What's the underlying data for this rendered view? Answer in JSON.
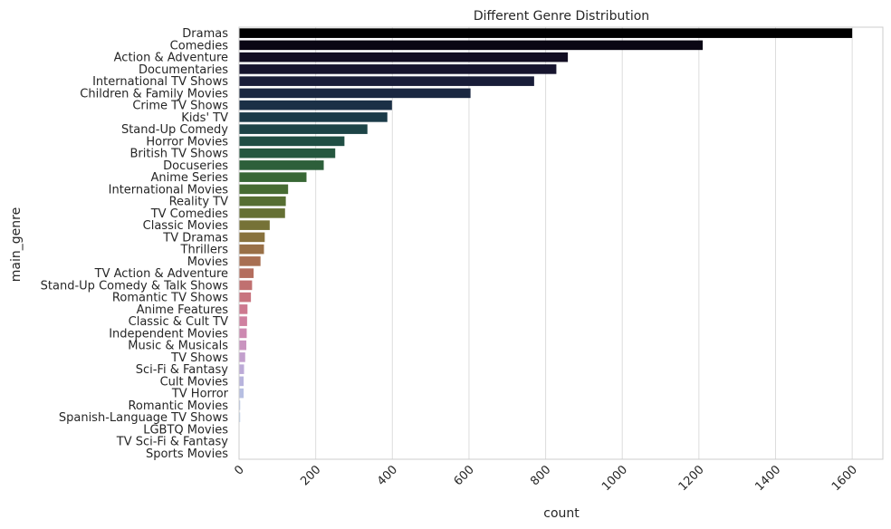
{
  "chart_data": {
    "type": "bar",
    "orientation": "horizontal",
    "title": "Different Genre Distribution",
    "xlabel": "count",
    "ylabel": "main_genre",
    "xlim": [
      0,
      1680
    ],
    "xticks": [
      0,
      200,
      400,
      600,
      800,
      1000,
      1200,
      1400,
      1600
    ],
    "grid": "vertical",
    "categories": [
      "Dramas",
      "Comedies",
      "Action & Adventure",
      "Documentaries",
      "International TV Shows",
      "Children & Family Movies",
      "Crime TV Shows",
      "Kids' TV",
      "Stand-Up Comedy",
      "Horror Movies",
      "British TV Shows",
      "Docuseries",
      "Anime Series",
      "International Movies",
      "Reality TV",
      "TV Comedies",
      "Classic Movies",
      "TV Dramas",
      "Thrillers",
      "Movies",
      "TV Action & Adventure",
      "Stand-Up Comedy & Talk Shows",
      "Romantic TV Shows",
      "Anime Features",
      "Classic & Cult TV",
      "Independent Movies",
      "Music & Musicals",
      "TV Shows",
      "Sci-Fi & Fantasy",
      "Cult Movies",
      "TV Horror",
      "Romantic Movies",
      "Spanish-Language TV Shows",
      "LGBTQ Movies",
      "TV Sci-Fi & Fantasy",
      "Sports Movies"
    ],
    "values": [
      1600,
      1210,
      858,
      828,
      770,
      604,
      399,
      387,
      335,
      275,
      251,
      221,
      176,
      128,
      122,
      120,
      80,
      67,
      65,
      56,
      38,
      34,
      31,
      22,
      21,
      20,
      19,
      16,
      13,
      12,
      12,
      3,
      3,
      1,
      1,
      1
    ],
    "colors": [
      "#000000",
      "#0a0614",
      "#120d22",
      "#16142e",
      "#191d39",
      "#1a2741",
      "#1b3046",
      "#1b3a48",
      "#1d4447",
      "#204e44",
      "#25573f",
      "#2d5f3a",
      "#386735",
      "#476c33",
      "#566e32",
      "#657034",
      "#767237",
      "#88723d",
      "#997047",
      "#a86f52",
      "#b46e5e",
      "#c07070",
      "#c8747f",
      "#cd798f",
      "#cf80a0",
      "#cd89b1",
      "#c994bf",
      "#c39fcd",
      "#bcaad7",
      "#b8b4dd",
      "#b7bfe2",
      "#bac9e6",
      "#c1d3ea",
      "#cbdcee",
      "#d8e6f2",
      "#e6eff6"
    ]
  }
}
